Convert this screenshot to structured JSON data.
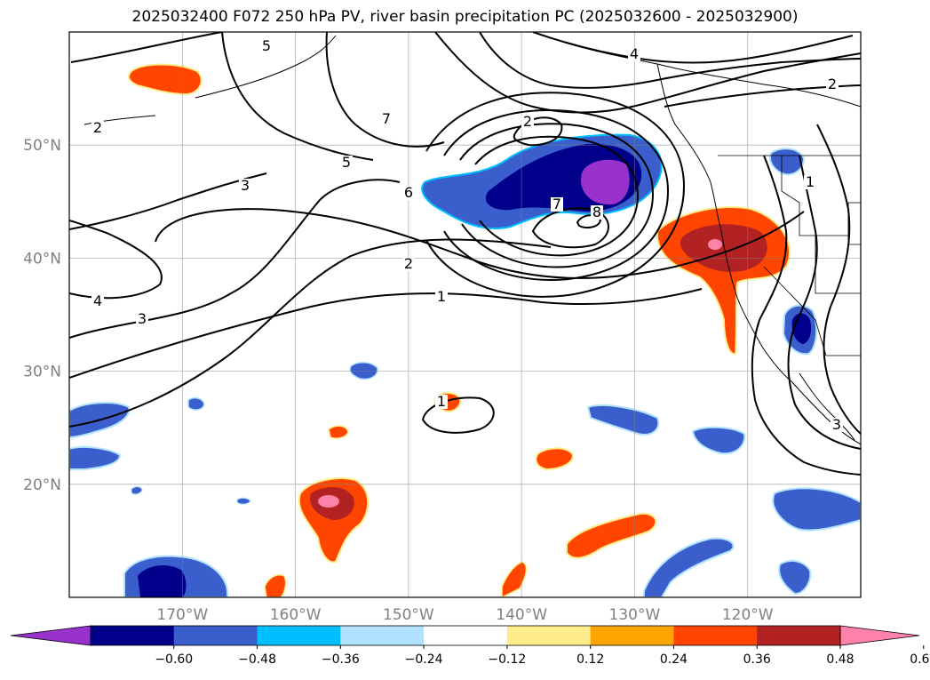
{
  "title": "2025032400 F072 250 hPa PV, river basin precipitation PC (2025032600 - 2025032900)",
  "map": {
    "projection": "PlateCarree",
    "extent_lon": [
      -180,
      -110
    ],
    "extent_lat": [
      10,
      60
    ],
    "gridlines": true,
    "lat_ticks": [
      {
        "value": 50,
        "label": "50°N"
      },
      {
        "value": 40,
        "label": "40°N"
      },
      {
        "value": 30,
        "label": "30°N"
      },
      {
        "value": 20,
        "label": "20°N"
      }
    ],
    "lon_ticks": [
      {
        "value": -170,
        "label": "170°W"
      },
      {
        "value": -160,
        "label": "160°W"
      },
      {
        "value": -150,
        "label": "150°W"
      },
      {
        "value": -140,
        "label": "140°W"
      },
      {
        "value": -130,
        "label": "130°W"
      },
      {
        "value": -120,
        "label": "120°W"
      }
    ]
  },
  "pv_contour_labels": [
    "5",
    "2",
    "2",
    "4",
    "3",
    "5",
    "7",
    "6",
    "2",
    "1",
    "4",
    "3",
    "1",
    "7",
    "8",
    "2",
    "1",
    "3"
  ],
  "colorbar": {
    "extend": "both",
    "colors": [
      "#9932CC",
      "#00008B",
      "#3A5FCD",
      "#00BFFF",
      "#B0E2FF",
      "#FFFFFF",
      "#FFEC8B",
      "#FFA500",
      "#FF4500",
      "#B22222",
      "#FF82AB"
    ],
    "tick_labels": [
      "−0.60",
      "−0.48",
      "−0.36",
      "−0.24",
      "−0.12",
      "0.12",
      "0.24",
      "0.36",
      "0.48",
      "0.60"
    ]
  }
}
